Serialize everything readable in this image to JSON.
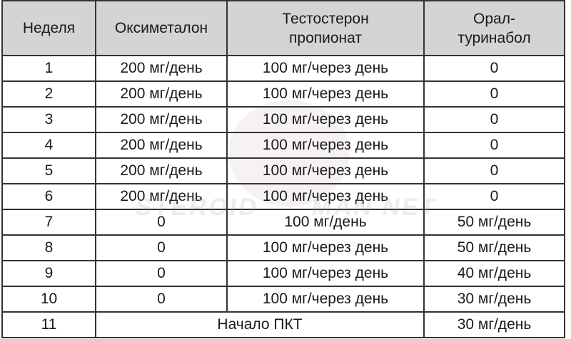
{
  "table": {
    "headers": [
      "Неделя",
      "Оксиметалон",
      "Тестостерон пропионат",
      "Орал-туринабол"
    ],
    "rows": [
      [
        "1",
        "200 мг/день",
        "100 мг/через день",
        "0"
      ],
      [
        "2",
        "200 мг/день",
        "100 мг/через день",
        "0"
      ],
      [
        "3",
        "200 мг/день",
        "100 мг/через день",
        "0"
      ],
      [
        "4",
        "200 мг/день",
        "100 мг/через день",
        "0"
      ],
      [
        "5",
        "200 мг/день",
        "100 мг/через день",
        "0"
      ],
      [
        "6",
        "200 мг/день",
        "100 мг/через день",
        "0"
      ],
      [
        "7",
        "0",
        "100 мг/день",
        "50 мг/день"
      ],
      [
        "8",
        "0",
        "100 мг/через день",
        "50 мг/день"
      ],
      [
        "9",
        "0",
        "100 мг/через день",
        "40 мг/день"
      ],
      [
        "10",
        "0",
        "100 мг/через день",
        "30 мг/день"
      ]
    ],
    "last_row": {
      "week": "11",
      "merged": "Начало ПКТ",
      "turinabol": "30 мг/день"
    }
  },
  "watermark": "STEROID MAN NET",
  "colors": {
    "header_bg": "#d4d4d4",
    "border": "#333333"
  }
}
